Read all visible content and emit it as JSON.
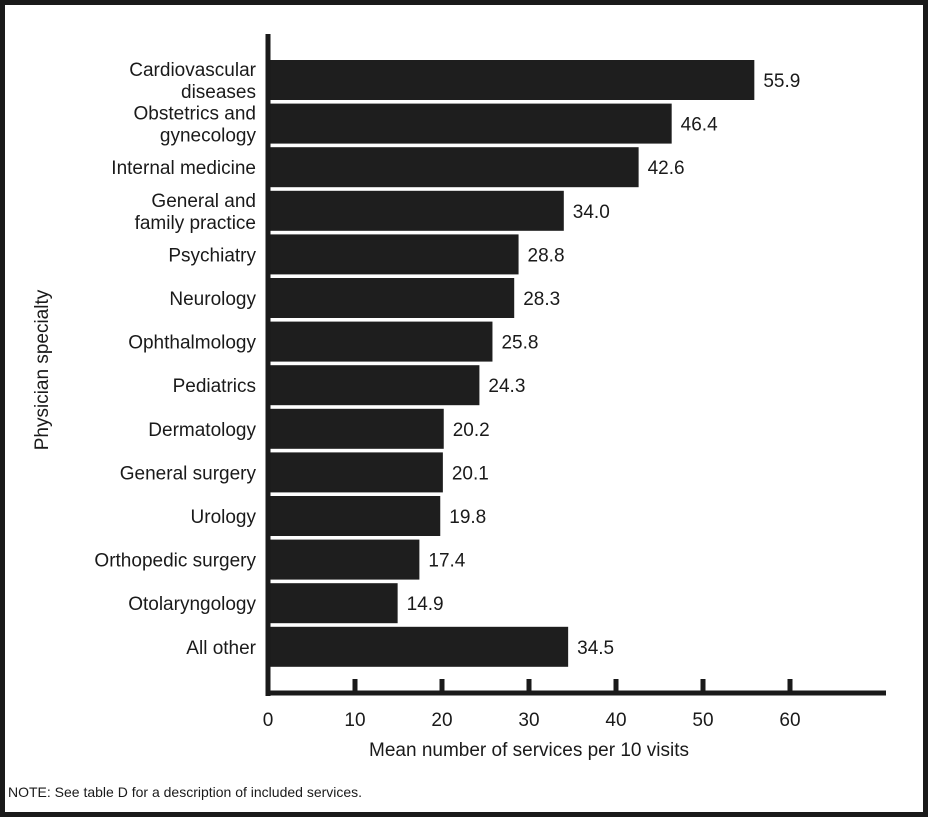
{
  "chart_data": {
    "type": "bar",
    "orientation": "horizontal",
    "categories": [
      [
        "Cardiovascular",
        "diseases"
      ],
      [
        "Obstetrics and",
        "gynecology"
      ],
      [
        "Internal medicine"
      ],
      [
        "General and",
        "family practice"
      ],
      [
        "Psychiatry"
      ],
      [
        "Neurology"
      ],
      [
        "Ophthalmology"
      ],
      [
        "Pediatrics"
      ],
      [
        "Dermatology"
      ],
      [
        "General surgery"
      ],
      [
        "Urology"
      ],
      [
        "Orthopedic surgery"
      ],
      [
        "Otolaryngology"
      ],
      [
        "All other"
      ]
    ],
    "values": [
      55.9,
      46.4,
      42.6,
      34.0,
      28.8,
      28.3,
      25.8,
      24.3,
      20.2,
      20.1,
      19.8,
      17.4,
      14.9,
      34.5
    ],
    "value_labels": [
      "55.9",
      "46.4",
      "42.6",
      "34.0",
      "28.8",
      "28.3",
      "25.8",
      "24.3",
      "20.2",
      "20.1",
      "19.8",
      "17.4",
      "14.9",
      "34.5"
    ],
    "xlabel": "Mean number of services per 10 visits",
    "ylabel": "Physician specialty",
    "xticks": [
      "0",
      "10",
      "20",
      "30",
      "40",
      "50",
      "60"
    ],
    "xlim": [
      0,
      70
    ],
    "bar_color": "#1e1e1e",
    "grid": false
  },
  "note": "NOTE: See table D for a description of included services."
}
